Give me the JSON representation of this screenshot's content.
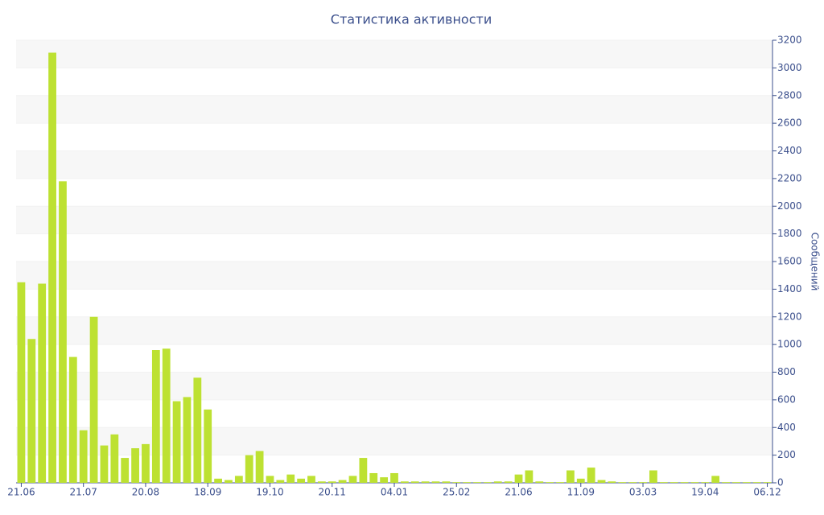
{
  "chart_data": {
    "type": "bar",
    "title": "Статистика активности",
    "y_label": "Сообщений",
    "categories": [
      "21.06",
      null,
      null,
      null,
      null,
      null,
      "21.07",
      null,
      null,
      null,
      null,
      null,
      "20.08",
      null,
      null,
      null,
      null,
      null,
      "18.09",
      null,
      null,
      null,
      null,
      null,
      "19.10",
      null,
      null,
      null,
      null,
      null,
      "20.11",
      null,
      null,
      null,
      null,
      null,
      "04.01",
      null,
      null,
      null,
      null,
      null,
      "25.02",
      null,
      null,
      null,
      null,
      null,
      "21.06",
      null,
      null,
      null,
      null,
      null,
      "11.09",
      null,
      null,
      null,
      null,
      null,
      "03.03",
      null,
      null,
      null,
      null,
      null,
      "19.04",
      null,
      null,
      null,
      null,
      null,
      "06.12"
    ],
    "values": [
      1450,
      1040,
      1440,
      3110,
      2180,
      910,
      380,
      1200,
      270,
      350,
      180,
      250,
      280,
      960,
      970,
      590,
      620,
      760,
      530,
      30,
      20,
      50,
      200,
      230,
      50,
      20,
      60,
      30,
      50,
      10,
      10,
      20,
      50,
      180,
      70,
      40,
      70,
      10,
      10,
      10,
      10,
      10,
      5,
      5,
      5,
      5,
      10,
      10,
      60,
      90,
      10,
      5,
      5,
      90,
      30,
      110,
      20,
      10,
      5,
      5,
      5,
      90,
      5,
      5,
      5,
      5,
      5,
      50,
      5,
      5,
      5,
      5,
      5
    ],
    "color": "#bde132",
    "ylim": [
      0,
      3200
    ],
    "yticks": [
      0,
      200,
      400,
      600,
      800,
      1000,
      1200,
      1400,
      1600,
      1800,
      2000,
      2200,
      2400,
      2600,
      2800,
      3000,
      3200
    ],
    "grid": true
  }
}
